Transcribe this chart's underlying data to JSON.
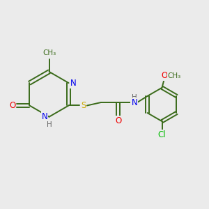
{
  "background_color": "#ebebeb",
  "bond_color": "#3a6b1a",
  "atom_colors": {
    "N": "#0000ee",
    "O": "#ee0000",
    "S": "#ccaa00",
    "Cl": "#00bb00",
    "C": "#3a6b1a",
    "H": "#666666"
  },
  "figsize": [
    3.0,
    3.0
  ],
  "dpi": 100
}
